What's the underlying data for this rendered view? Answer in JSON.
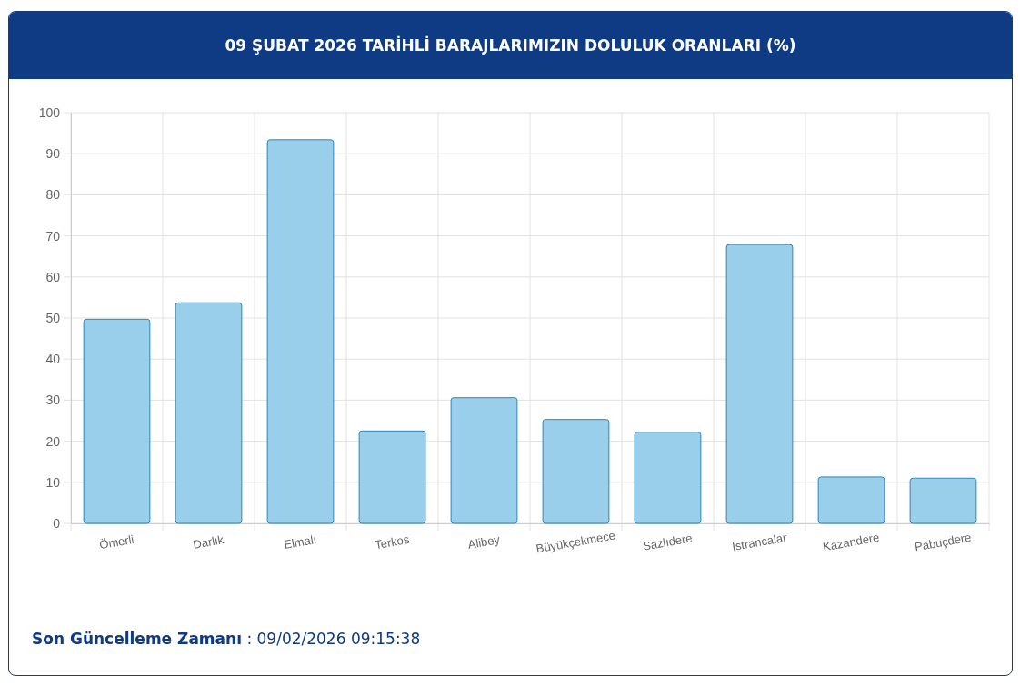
{
  "chart_data": {
    "type": "bar",
    "title": "09 ŞUBAT 2026 TARİHLİ BARAJLARIMIZIN DOLULUK ORANLARI (%)",
    "categories": [
      "Ömerli",
      "Darlık",
      "Elmalı",
      "Terkos",
      "Alibey",
      "Büyükçekmece",
      "Sazlıdere",
      "Istrancalar",
      "Kazandere",
      "Pabuçdere"
    ],
    "values": [
      49.7,
      53.7,
      93.4,
      22.5,
      30.6,
      25.3,
      22.2,
      67.9,
      11.3,
      11.0
    ],
    "color": "#9acfec",
    "ylim": [
      0,
      100
    ],
    "yticks": [
      0,
      10,
      20,
      30,
      40,
      50,
      60,
      70,
      80,
      90,
      100
    ],
    "grid": true,
    "annotations": [
      "Son Güncelleme Zamanı : 09/02/2026 09:15:38"
    ]
  }
}
